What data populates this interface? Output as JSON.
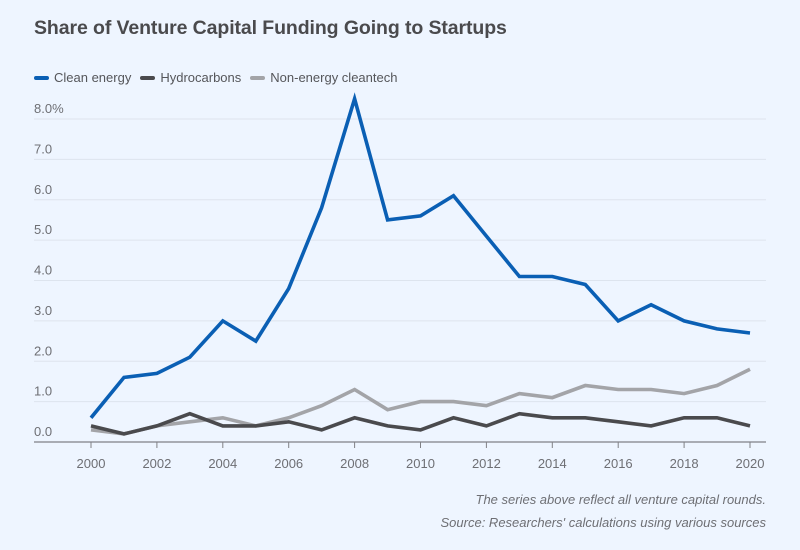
{
  "chart_data": {
    "type": "line",
    "title": "Share of Venture Capital Funding Going to Startups",
    "xlabel": "",
    "ylabel": "",
    "x": [
      2000,
      2001,
      2002,
      2003,
      2004,
      2005,
      2006,
      2007,
      2008,
      2009,
      2010,
      2011,
      2012,
      2013,
      2014,
      2015,
      2016,
      2017,
      2018,
      2019,
      2020
    ],
    "xlim": [
      2000,
      2020
    ],
    "ylim": [
      0,
      8.0
    ],
    "x_ticks": [
      "2000",
      "2002",
      "2004",
      "2006",
      "2008",
      "2010",
      "2012",
      "2014",
      "2016",
      "2018",
      "2020"
    ],
    "y_ticks": [
      "0.0",
      "1.0",
      "2.0",
      "3.0",
      "4.0",
      "5.0",
      "6.0",
      "7.0",
      "8.0%"
    ],
    "grid": true,
    "legend_position": "top-left",
    "series": [
      {
        "name": "Clean energy",
        "color": "#0a5fb4",
        "values": [
          0.6,
          1.6,
          1.7,
          2.1,
          3.0,
          2.5,
          3.8,
          5.8,
          8.5,
          5.5,
          5.6,
          6.1,
          5.1,
          4.1,
          4.1,
          3.9,
          3.0,
          3.4,
          3.0,
          2.8,
          2.7
        ]
      },
      {
        "name": "Hydrocarbons",
        "color": "#4a4a4d",
        "values": [
          0.4,
          0.2,
          0.4,
          0.7,
          0.4,
          0.4,
          0.5,
          0.3,
          0.6,
          0.4,
          0.3,
          0.6,
          0.4,
          0.7,
          0.6,
          0.6,
          0.5,
          0.4,
          0.6,
          0.6,
          0.4
        ]
      },
      {
        "name": "Non-energy cleantech",
        "color": "#a3a4a8",
        "values": [
          0.3,
          0.2,
          0.4,
          0.5,
          0.6,
          0.4,
          0.6,
          0.9,
          1.3,
          0.8,
          1.0,
          1.0,
          0.9,
          1.2,
          1.1,
          1.4,
          1.3,
          1.3,
          1.2,
          1.4,
          1.8
        ]
      }
    ],
    "notes": [
      "The series above reflect all venture capital rounds.",
      "Source: Researchers' calculations using various sources"
    ]
  }
}
